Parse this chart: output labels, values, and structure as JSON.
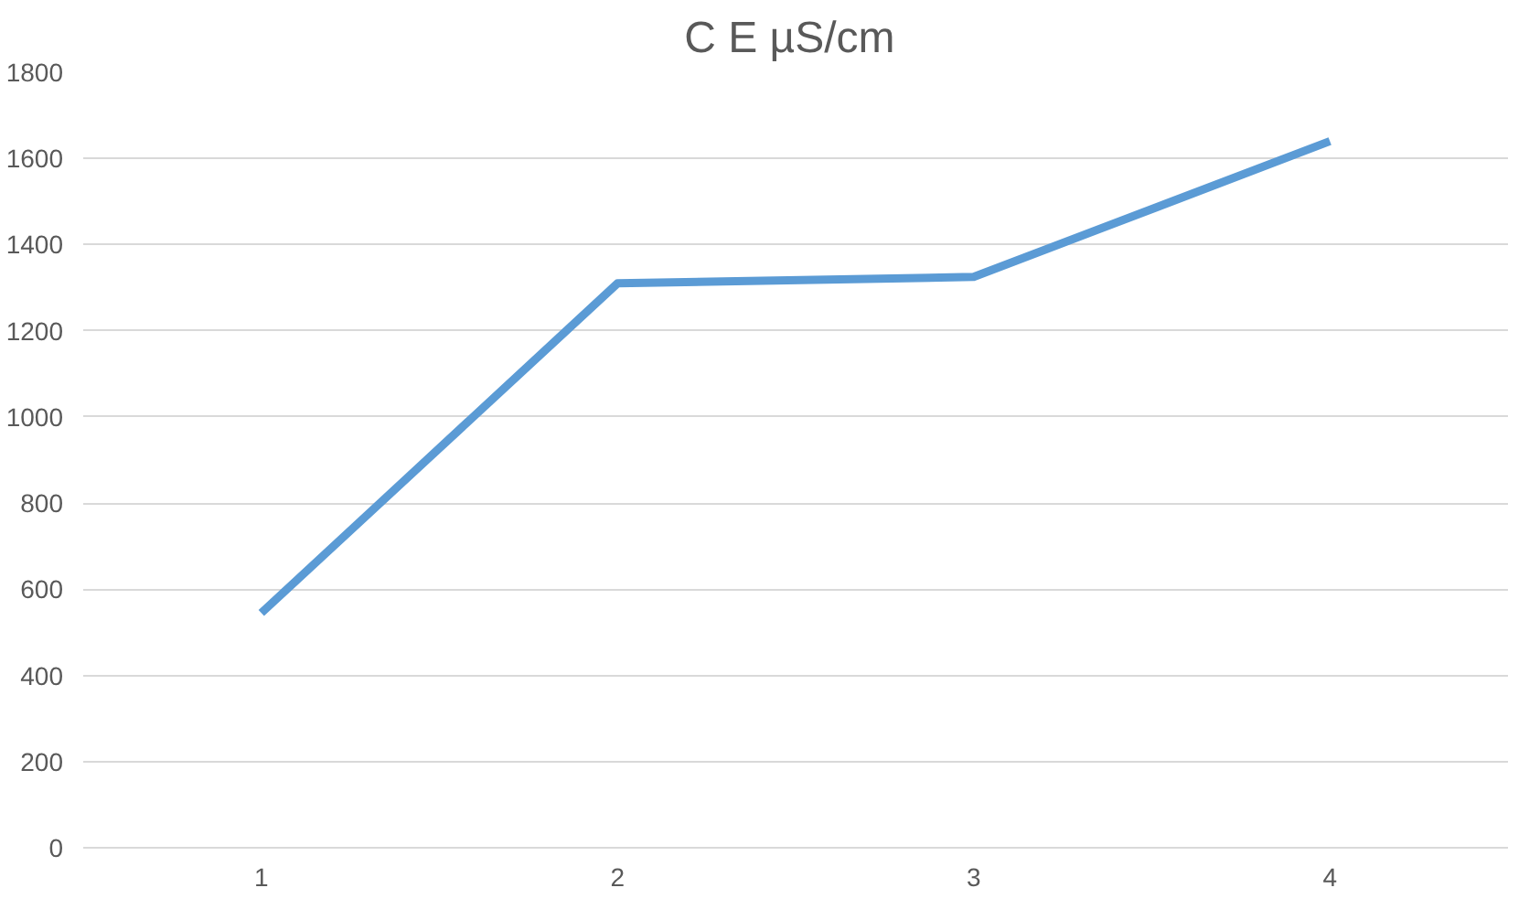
{
  "chart_data": {
    "type": "line",
    "title": "C E  µS/cm",
    "categories": [
      "1",
      "2",
      "3",
      "4"
    ],
    "series": [
      {
        "color": "#5b9bd5",
        "values": [
          545,
          1310,
          1325,
          1640
        ]
      }
    ],
    "ylim": [
      0,
      1800
    ],
    "yticks": [
      0,
      200,
      400,
      600,
      800,
      1000,
      1200,
      1400,
      1600,
      1800
    ],
    "grid": "y",
    "marker": "none",
    "line_style": "solid"
  }
}
